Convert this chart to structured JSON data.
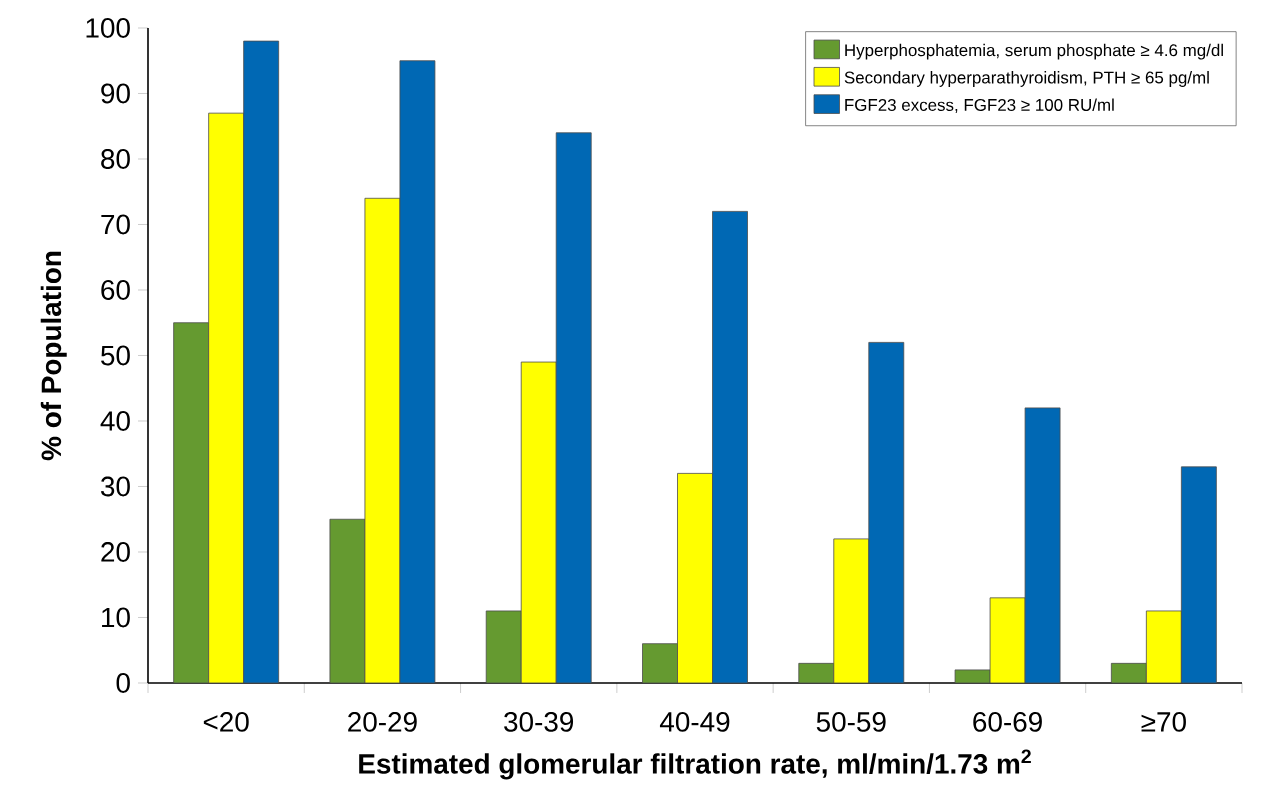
{
  "chart_data": {
    "type": "bar",
    "xlabel": "Estimated glomerular filtration rate, ml/min/1.73 m$^{2}$",
    "ylabel": "% of Population",
    "categories": [
      "<20",
      "20-29",
      "30-39",
      "40-49",
      "50-59",
      "60-69",
      "≥70"
    ],
    "series": [
      {
        "name": "Hyperphosphatemia, serum phosphate ≥ 4.6 mg/dl",
        "color": "#659a30",
        "values": [
          55,
          25,
          11,
          6,
          3,
          2,
          3
        ]
      },
      {
        "name": "Secondary hyperparathyroidism, PTH ≥ 65 pg/ml",
        "color": "#ffff00",
        "values": [
          87,
          74,
          49,
          32,
          22,
          13,
          11
        ]
      },
      {
        "name": "FGF23 excess, FGF23 ≥ 100 RU/ml",
        "color": "#0068b4",
        "values": [
          98,
          95,
          84,
          72,
          52,
          42,
          33
        ]
      }
    ],
    "ylim": [
      0,
      100
    ],
    "yticks": [
      0,
      10,
      20,
      30,
      40,
      50,
      60,
      70,
      80,
      90,
      100
    ],
    "grid": false,
    "legend": "top right"
  }
}
